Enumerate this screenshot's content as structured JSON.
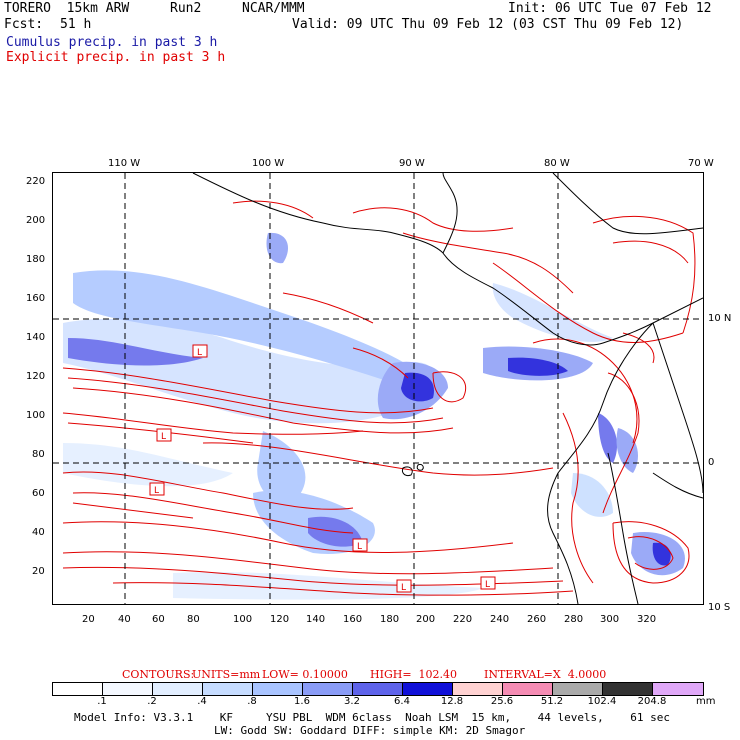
{
  "header": {
    "model": "TORERO  15km ARW",
    "run": "Run2",
    "org": "NCAR/MMM",
    "init": "Init: 06 UTC Tue 07 Feb 12",
    "fcst_label": "Fcst:",
    "fcst_value": "51 h",
    "valid": "Valid: 09 UTC Thu 09 Feb 12 (03 CST Thu 09 Feb 12)",
    "cumulus": "Cumulus precip. in past 3 h",
    "explicit": "Explicit precip. in past 3 h"
  },
  "colors": {
    "cumulus": "#1a1aa6",
    "explicit": "#e00000",
    "ocean_shade_light": "#cfe0ff",
    "shade_mid": "#8a8cf0",
    "shade_dark": "#2020e0"
  },
  "map": {
    "lon_labels": [
      "110 W",
      "100 W",
      "90 W",
      "80 W",
      "70 W"
    ],
    "lat_labels": [
      "10 N",
      "0",
      "10 S"
    ],
    "y_ticks": [
      "220",
      "200",
      "180",
      "160",
      "140",
      "120",
      "100",
      "80",
      "60",
      "40",
      "20"
    ],
    "x_ticks": [
      "20",
      "40",
      "60",
      "80",
      "100",
      "120",
      "140",
      "160",
      "180",
      "200",
      "220",
      "240",
      "260",
      "280",
      "300",
      "320"
    ],
    "low_markers": [
      "L"
    ]
  },
  "contours": {
    "label": "CONTOURS:",
    "units": "UNITS=mm",
    "low": "LOW= 0.10000",
    "high": "HIGH=  102.40",
    "interval": "INTERVAL=X  4.0000"
  },
  "colorbar": {
    "labels": [
      ".1",
      ".2",
      ".4",
      ".8",
      "1.6",
      "3.2",
      "6.4",
      "12.8",
      "25.6",
      "51.2",
      "102.4",
      "204.8"
    ],
    "unit": "mm",
    "colors": [
      "#ffffff",
      "#f4f8ff",
      "#e2eeff",
      "#c6dcff",
      "#a9c4ff",
      "#8a9cf6",
      "#5e63ea",
      "#1010d8",
      "#ffd2d2",
      "#f58cb4",
      "#aaaaaa",
      "#333333",
      "#e0a8f8"
    ]
  },
  "footer": {
    "line1": "Model Info: V3.3.1    KF     YSU PBL  WDM 6class  Noah LSM  15 km,    44 levels,    61 sec",
    "line2": "LW: Godd SW: Goddard DIFF: simple KM: 2D Smagor"
  }
}
